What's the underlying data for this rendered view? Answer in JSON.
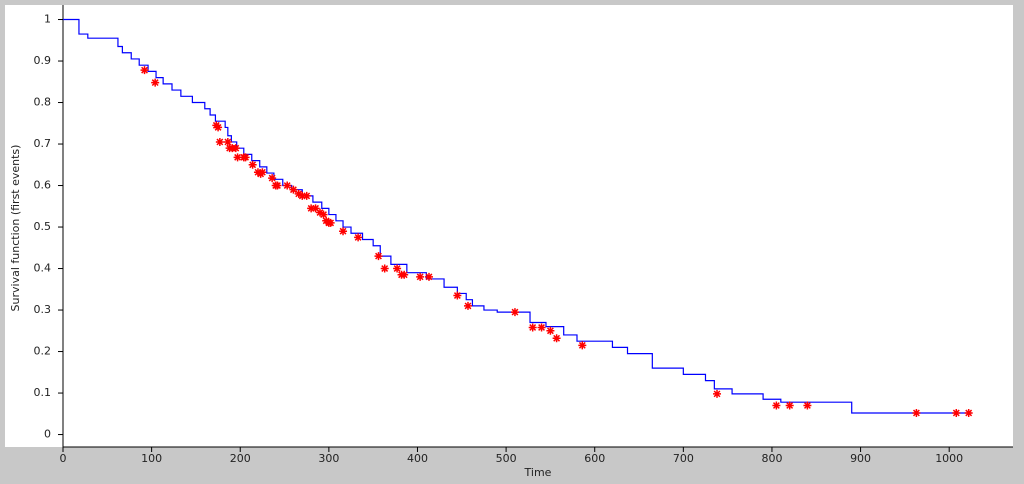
{
  "chart_data": {
    "type": "step",
    "xlabel": "Time",
    "ylabel": "Survival function (first events)",
    "xlim": [
      0,
      1072
    ],
    "ylim": [
      -0.03,
      1.035
    ],
    "xticks": [
      0,
      100,
      200,
      300,
      400,
      500,
      600,
      700,
      800,
      900,
      1000
    ],
    "yticks": [
      0,
      0.1,
      0.2,
      0.3,
      0.4,
      0.5,
      0.6,
      0.7,
      0.8,
      0.9,
      1
    ],
    "line_color": "#0000ff",
    "marker_color": "#ff0000",
    "x": [
      0,
      18,
      28,
      62,
      67,
      77,
      86,
      96,
      105,
      113,
      123,
      133,
      146,
      160,
      166,
      172,
      183,
      186,
      190,
      196,
      204,
      213,
      222,
      230,
      238,
      248,
      258,
      270,
      282,
      292,
      300,
      308,
      316,
      325,
      338,
      350,
      358,
      370,
      388,
      410,
      430,
      445,
      455,
      462,
      475,
      490,
      527,
      545,
      565,
      580,
      620,
      637,
      665,
      700,
      725,
      735,
      755,
      790,
      810,
      890,
      1025
    ],
    "values": [
      1,
      0.965,
      0.955,
      0.935,
      0.92,
      0.905,
      0.89,
      0.875,
      0.86,
      0.845,
      0.83,
      0.815,
      0.8,
      0.785,
      0.77,
      0.755,
      0.74,
      0.72,
      0.705,
      0.69,
      0.675,
      0.66,
      0.645,
      0.63,
      0.615,
      0.6,
      0.59,
      0.575,
      0.56,
      0.545,
      0.53,
      0.515,
      0.5,
      0.485,
      0.47,
      0.455,
      0.43,
      0.41,
      0.39,
      0.375,
      0.355,
      0.34,
      0.325,
      0.31,
      0.3,
      0.295,
      0.27,
      0.26,
      0.24,
      0.225,
      0.21,
      0.195,
      0.16,
      0.145,
      0.13,
      0.11,
      0.098,
      0.085,
      0.078,
      0.052,
      0.052
    ],
    "censored": {
      "x": [
        92,
        104,
        173,
        175,
        177,
        186,
        188,
        191,
        195,
        197,
        204,
        206,
        214,
        220,
        223,
        225,
        236,
        240,
        242,
        253,
        260,
        266,
        270,
        275,
        280,
        285,
        290,
        294,
        297,
        300,
        302,
        316,
        333,
        356,
        363,
        377,
        382,
        385,
        403,
        413,
        445,
        457,
        510,
        530,
        540,
        550,
        557,
        586,
        738,
        805,
        820,
        840,
        963,
        1008,
        1022
      ],
      "values": [
        0.878,
        0.848,
        0.745,
        0.74,
        0.705,
        0.705,
        0.69,
        0.69,
        0.69,
        0.668,
        0.668,
        0.668,
        0.65,
        0.632,
        0.628,
        0.632,
        0.618,
        0.6,
        0.6,
        0.6,
        0.59,
        0.58,
        0.575,
        0.575,
        0.545,
        0.545,
        0.535,
        0.53,
        0.515,
        0.51,
        0.51,
        0.49,
        0.475,
        0.43,
        0.4,
        0.4,
        0.385,
        0.385,
        0.38,
        0.38,
        0.335,
        0.31,
        0.295,
        0.258,
        0.258,
        0.25,
        0.232,
        0.215,
        0.098,
        0.07,
        0.07,
        0.07,
        0.052,
        0.052,
        0.052
      ]
    }
  }
}
